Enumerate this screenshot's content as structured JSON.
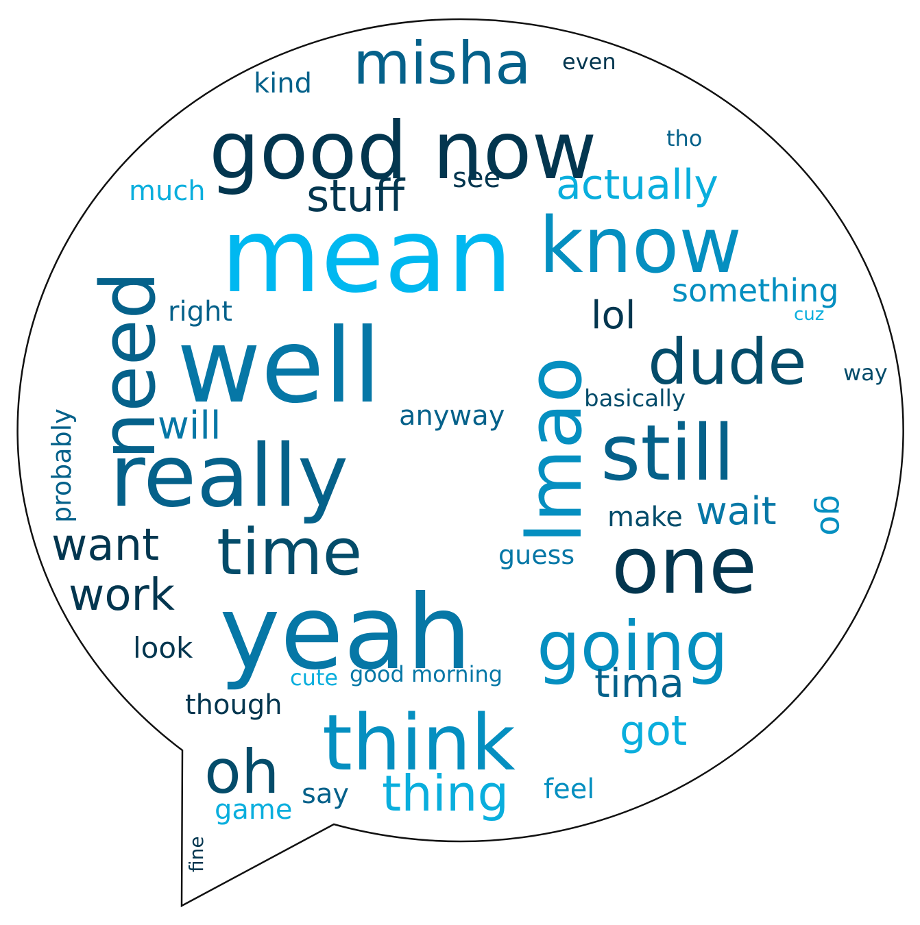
{
  "palette": {
    "darkest": "#03364f",
    "dark": "#044c6a",
    "mid_dark": "#05618a",
    "mid": "#0677a6",
    "mid_light": "#058fc0",
    "light": "#0aaedd",
    "lightest": "#00b8f0"
  },
  "words": [
    {
      "text": "mean",
      "tone": "lightest"
    },
    {
      "text": "well",
      "tone": "mid"
    },
    {
      "text": "yeah",
      "tone": "mid"
    },
    {
      "text": "really",
      "tone": "mid_dark"
    },
    {
      "text": "good now",
      "tone": "darkest"
    },
    {
      "text": "know",
      "tone": "mid_light"
    },
    {
      "text": "think",
      "tone": "mid_light"
    },
    {
      "text": "lmao",
      "tone": "mid_light"
    },
    {
      "text": "still",
      "tone": "mid_dark"
    },
    {
      "text": "one",
      "tone": "darkest"
    },
    {
      "text": "need",
      "tone": "mid_dark"
    },
    {
      "text": "going",
      "tone": "mid_light"
    },
    {
      "text": "time",
      "tone": "dark"
    },
    {
      "text": "dude",
      "tone": "dark"
    },
    {
      "text": "misha",
      "tone": "mid_dark"
    },
    {
      "text": "oh",
      "tone": "dark"
    },
    {
      "text": "actually",
      "tone": "light"
    },
    {
      "text": "thing",
      "tone": "light"
    },
    {
      "text": "want",
      "tone": "darkest"
    },
    {
      "text": "stuff",
      "tone": "darkest"
    },
    {
      "text": "work",
      "tone": "darkest"
    },
    {
      "text": "got",
      "tone": "light"
    },
    {
      "text": "tima",
      "tone": "mid_dark"
    },
    {
      "text": "wait",
      "tone": "mid"
    },
    {
      "text": "something",
      "tone": "mid_light"
    },
    {
      "text": "lol",
      "tone": "darkest"
    },
    {
      "text": "will",
      "tone": "mid"
    },
    {
      "text": "go",
      "tone": "mid_light"
    },
    {
      "text": "look",
      "tone": "darkest"
    },
    {
      "text": "anyway",
      "tone": "mid_dark"
    },
    {
      "text": "make",
      "tone": "dark"
    },
    {
      "text": "guess",
      "tone": "mid"
    },
    {
      "text": "though",
      "tone": "darkest"
    },
    {
      "text": "game",
      "tone": "light"
    },
    {
      "text": "say",
      "tone": "mid_dark"
    },
    {
      "text": "feel",
      "tone": "mid_light"
    },
    {
      "text": "right",
      "tone": "mid_dark"
    },
    {
      "text": "kind",
      "tone": "mid_dark"
    },
    {
      "text": "much",
      "tone": "light"
    },
    {
      "text": "see",
      "tone": "darkest"
    },
    {
      "text": "probably",
      "tone": "mid_dark"
    },
    {
      "text": "basically",
      "tone": "dark"
    },
    {
      "text": "good morning",
      "tone": "mid"
    },
    {
      "text": "cute",
      "tone": "light"
    },
    {
      "text": "even",
      "tone": "darkest"
    },
    {
      "text": "tho",
      "tone": "mid_dark"
    },
    {
      "text": "cuz",
      "tone": "light"
    },
    {
      "text": "way",
      "tone": "dark"
    },
    {
      "text": "fine",
      "tone": "darkest"
    }
  ]
}
